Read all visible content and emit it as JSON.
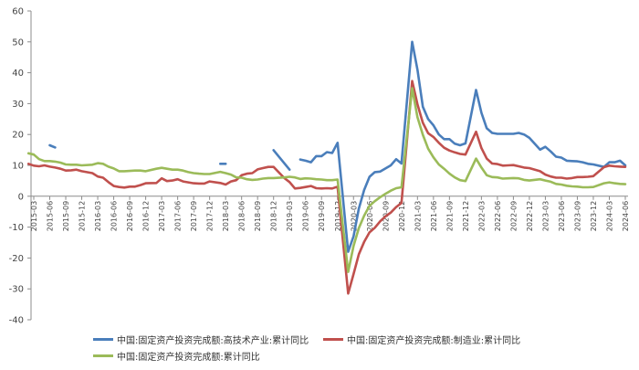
{
  "chart_data": {
    "type": "line",
    "title": "",
    "xlabel": "",
    "ylabel": "",
    "ylim": [
      -40,
      60
    ],
    "yticks": [
      -40,
      -30,
      -20,
      -10,
      0,
      10,
      20,
      30,
      40,
      50,
      60
    ],
    "grid": false,
    "legend_position": "bottom",
    "x_tick_labels": [
      "2015-03",
      "2015-06",
      "2015-09",
      "2015-12",
      "2016-03",
      "2016-06",
      "2016-09",
      "2016-12",
      "2017-03",
      "2017-06",
      "2017-09",
      "2017-12",
      "2018-03",
      "2018-06",
      "2018-09",
      "2018-12",
      "2019-03",
      "2019-06",
      "2019-09",
      "2019-12",
      "2020-03",
      "2020-06",
      "2020-09",
      "2020-12",
      "2021-03",
      "2021-06",
      "2021-09",
      "2021-12",
      "2022-03",
      "2022-06",
      "2022-09",
      "2022-12",
      "2023-03",
      "2023-06",
      "2023-09",
      "2023-12",
      "2024-03",
      "2024-06"
    ],
    "series": [
      {
        "name": "中国:固定资产投资完成额:高技术产业:累计同比",
        "color": "#4a7ebb",
        "points": [
          [
            "2015-06",
            16.5
          ],
          [
            "2015-07",
            15.8
          ],
          [
            null,
            null
          ],
          [
            "2018-02",
            10.5
          ],
          [
            "2018-03",
            10.5
          ],
          [
            null,
            null
          ],
          [
            "2018-12",
            14.9
          ],
          [
            "2019-03",
            8.6
          ],
          [
            null,
            null
          ],
          [
            "2019-05",
            11.9
          ],
          [
            "2019-06",
            11.5
          ],
          [
            "2019-07",
            11.0
          ],
          [
            "2019-08",
            13.0
          ],
          [
            "2019-09",
            13.0
          ],
          [
            "2019-10",
            14.3
          ],
          [
            "2019-11",
            14.0
          ],
          [
            "2019-12",
            17.3
          ],
          [
            "2020-02",
            -18.0
          ],
          [
            "2020-03",
            -13.0
          ],
          [
            "2020-04",
            -4.0
          ],
          [
            "2020-05",
            2.0
          ],
          [
            "2020-06",
            6.3
          ],
          [
            "2020-07",
            7.8
          ],
          [
            "2020-08",
            8.0
          ],
          [
            "2020-09",
            9.0
          ],
          [
            "2020-10",
            10.0
          ],
          [
            "2020-11",
            12.0
          ],
          [
            "2020-12",
            10.6
          ],
          [
            "2021-02",
            50.0
          ],
          [
            "2021-03",
            41.0
          ],
          [
            "2021-04",
            29.0
          ],
          [
            "2021-05",
            25.0
          ],
          [
            "2021-06",
            23.0
          ],
          [
            "2021-07",
            20.0
          ],
          [
            "2021-08",
            18.5
          ],
          [
            "2021-09",
            18.5
          ],
          [
            "2021-10",
            17.0
          ],
          [
            "2021-11",
            16.5
          ],
          [
            "2021-12",
            17.1
          ],
          [
            "2022-02",
            34.4
          ],
          [
            "2022-03",
            27.0
          ],
          [
            "2022-04",
            22.0
          ],
          [
            "2022-05",
            20.5
          ],
          [
            "2022-06",
            20.2
          ],
          [
            "2022-07",
            20.2
          ],
          [
            "2022-08",
            20.2
          ],
          [
            "2022-09",
            20.2
          ],
          [
            "2022-10",
            20.5
          ],
          [
            "2022-11",
            20.0
          ],
          [
            "2022-12",
            18.9
          ],
          [
            "2023-02",
            15.1
          ],
          [
            "2023-03",
            16.0
          ],
          [
            "2023-04",
            14.5
          ],
          [
            "2023-05",
            12.8
          ],
          [
            "2023-06",
            12.5
          ],
          [
            "2023-07",
            11.5
          ],
          [
            "2023-08",
            11.4
          ],
          [
            "2023-09",
            11.3
          ],
          [
            "2023-10",
            11.0
          ],
          [
            "2023-11",
            10.5
          ],
          [
            "2023-12",
            10.3
          ],
          [
            "2024-02",
            9.5
          ],
          [
            "2024-03",
            11.0
          ],
          [
            "2024-04",
            11.0
          ],
          [
            "2024-05",
            11.5
          ],
          [
            "2024-06",
            10.0
          ]
        ]
      },
      {
        "name": "中国:固定资产投资完成额:制造业:累计同比",
        "color": "#c0504d",
        "points": [
          [
            "2015-02",
            10.5
          ],
          [
            "2015-03",
            9.9
          ],
          [
            "2015-04",
            9.7
          ],
          [
            "2015-05",
            10.0
          ],
          [
            "2015-06",
            9.6
          ],
          [
            "2015-07",
            9.3
          ],
          [
            "2015-08",
            8.9
          ],
          [
            "2015-09",
            8.3
          ],
          [
            "2015-10",
            8.4
          ],
          [
            "2015-11",
            8.6
          ],
          [
            "2015-12",
            8.1
          ],
          [
            "2016-02",
            7.5
          ],
          [
            "2016-03",
            6.4
          ],
          [
            "2016-04",
            6.0
          ],
          [
            "2016-05",
            4.6
          ],
          [
            "2016-06",
            3.3
          ],
          [
            "2016-07",
            3.0
          ],
          [
            "2016-08",
            2.8
          ],
          [
            "2016-09",
            3.1
          ],
          [
            "2016-10",
            3.1
          ],
          [
            "2016-11",
            3.6
          ],
          [
            "2016-12",
            4.2
          ],
          [
            "2017-02",
            4.3
          ],
          [
            "2017-03",
            5.8
          ],
          [
            "2017-04",
            4.9
          ],
          [
            "2017-05",
            5.1
          ],
          [
            "2017-06",
            5.5
          ],
          [
            "2017-07",
            4.8
          ],
          [
            "2017-08",
            4.5
          ],
          [
            "2017-09",
            4.2
          ],
          [
            "2017-10",
            4.1
          ],
          [
            "2017-11",
            4.1
          ],
          [
            "2017-12",
            4.8
          ],
          [
            "2018-02",
            4.3
          ],
          [
            "2018-03",
            3.8
          ],
          [
            "2018-04",
            4.8
          ],
          [
            "2018-05",
            5.2
          ],
          [
            "2018-06",
            6.8
          ],
          [
            "2018-07",
            7.3
          ],
          [
            "2018-08",
            7.5
          ],
          [
            "2018-09",
            8.7
          ],
          [
            "2018-10",
            9.1
          ],
          [
            "2018-11",
            9.5
          ],
          [
            "2018-12",
            9.5
          ],
          [
            "2019-02",
            5.9
          ],
          [
            "2019-03",
            4.6
          ],
          [
            "2019-04",
            2.5
          ],
          [
            "2019-05",
            2.7
          ],
          [
            "2019-06",
            3.0
          ],
          [
            "2019-07",
            3.3
          ],
          [
            "2019-08",
            2.6
          ],
          [
            "2019-09",
            2.5
          ],
          [
            "2019-10",
            2.6
          ],
          [
            "2019-11",
            2.5
          ],
          [
            "2019-12",
            3.1
          ],
          [
            "2020-02",
            -31.5
          ],
          [
            "2020-03",
            -25.2
          ],
          [
            "2020-04",
            -18.8
          ],
          [
            "2020-05",
            -14.8
          ],
          [
            "2020-06",
            -11.7
          ],
          [
            "2020-07",
            -10.2
          ],
          [
            "2020-08",
            -8.1
          ],
          [
            "2020-09",
            -6.5
          ],
          [
            "2020-10",
            -5.3
          ],
          [
            "2020-11",
            -3.5
          ],
          [
            "2020-12",
            -2.2
          ],
          [
            "2021-02",
            37.3
          ],
          [
            "2021-03",
            29.8
          ],
          [
            "2021-04",
            23.8
          ],
          [
            "2021-05",
            20.4
          ],
          [
            "2021-06",
            19.2
          ],
          [
            "2021-07",
            17.3
          ],
          [
            "2021-08",
            15.7
          ],
          [
            "2021-09",
            14.8
          ],
          [
            "2021-10",
            14.2
          ],
          [
            "2021-11",
            13.7
          ],
          [
            "2021-12",
            13.5
          ],
          [
            "2022-02",
            20.9
          ],
          [
            "2022-03",
            15.6
          ],
          [
            "2022-04",
            12.2
          ],
          [
            "2022-05",
            10.6
          ],
          [
            "2022-06",
            10.4
          ],
          [
            "2022-07",
            9.9
          ],
          [
            "2022-08",
            10.0
          ],
          [
            "2022-09",
            10.1
          ],
          [
            "2022-10",
            9.7
          ],
          [
            "2022-11",
            9.3
          ],
          [
            "2022-12",
            9.1
          ],
          [
            "2023-02",
            8.1
          ],
          [
            "2023-03",
            7.0
          ],
          [
            "2023-04",
            6.4
          ],
          [
            "2023-05",
            6.0
          ],
          [
            "2023-06",
            6.0
          ],
          [
            "2023-07",
            5.7
          ],
          [
            "2023-08",
            5.9
          ],
          [
            "2023-09",
            6.2
          ],
          [
            "2023-10",
            6.2
          ],
          [
            "2023-11",
            6.3
          ],
          [
            "2023-12",
            6.5
          ],
          [
            "2024-02",
            9.4
          ],
          [
            "2024-03",
            9.9
          ],
          [
            "2024-04",
            9.7
          ],
          [
            "2024-05",
            9.6
          ],
          [
            "2024-06",
            9.5
          ]
        ]
      },
      {
        "name": "中国:固定资产投资完成额:累计同比",
        "color": "#9bbb59",
        "points": [
          [
            "2015-02",
            13.9
          ],
          [
            "2015-03",
            13.5
          ],
          [
            "2015-04",
            12.0
          ],
          [
            "2015-05",
            11.4
          ],
          [
            "2015-06",
            11.4
          ],
          [
            "2015-07",
            11.2
          ],
          [
            "2015-08",
            10.9
          ],
          [
            "2015-09",
            10.3
          ],
          [
            "2015-10",
            10.2
          ],
          [
            "2015-11",
            10.2
          ],
          [
            "2015-12",
            10.0
          ],
          [
            "2016-02",
            10.2
          ],
          [
            "2016-03",
            10.7
          ],
          [
            "2016-04",
            10.5
          ],
          [
            "2016-05",
            9.6
          ],
          [
            "2016-06",
            9.0
          ],
          [
            "2016-07",
            8.1
          ],
          [
            "2016-08",
            8.1
          ],
          [
            "2016-09",
            8.2
          ],
          [
            "2016-10",
            8.3
          ],
          [
            "2016-11",
            8.3
          ],
          [
            "2016-12",
            8.1
          ],
          [
            "2017-02",
            8.9
          ],
          [
            "2017-03",
            9.2
          ],
          [
            "2017-04",
            8.9
          ],
          [
            "2017-05",
            8.6
          ],
          [
            "2017-06",
            8.6
          ],
          [
            "2017-07",
            8.3
          ],
          [
            "2017-08",
            7.8
          ],
          [
            "2017-09",
            7.5
          ],
          [
            "2017-10",
            7.3
          ],
          [
            "2017-11",
            7.2
          ],
          [
            "2017-12",
            7.2
          ],
          [
            "2018-02",
            7.9
          ],
          [
            "2018-03",
            7.5
          ],
          [
            "2018-04",
            7.0
          ],
          [
            "2018-05",
            6.1
          ],
          [
            "2018-06",
            6.0
          ],
          [
            "2018-07",
            5.5
          ],
          [
            "2018-08",
            5.3
          ],
          [
            "2018-09",
            5.4
          ],
          [
            "2018-10",
            5.7
          ],
          [
            "2018-11",
            5.9
          ],
          [
            "2018-12",
            5.9
          ],
          [
            "2019-02",
            6.1
          ],
          [
            "2019-03",
            6.3
          ],
          [
            "2019-04",
            6.1
          ],
          [
            "2019-05",
            5.6
          ],
          [
            "2019-06",
            5.8
          ],
          [
            "2019-07",
            5.7
          ],
          [
            "2019-08",
            5.5
          ],
          [
            "2019-09",
            5.4
          ],
          [
            "2019-10",
            5.2
          ],
          [
            "2019-11",
            5.2
          ],
          [
            "2019-12",
            5.4
          ],
          [
            "2020-02",
            -24.5
          ],
          [
            "2020-03",
            -16.1
          ],
          [
            "2020-04",
            -10.3
          ],
          [
            "2020-05",
            -6.3
          ],
          [
            "2020-06",
            -3.1
          ],
          [
            "2020-07",
            -1.6
          ],
          [
            "2020-08",
            -0.3
          ],
          [
            "2020-09",
            0.8
          ],
          [
            "2020-10",
            1.8
          ],
          [
            "2020-11",
            2.6
          ],
          [
            "2020-12",
            2.9
          ],
          [
            "2021-02",
            35.0
          ],
          [
            "2021-03",
            25.6
          ],
          [
            "2021-04",
            19.9
          ],
          [
            "2021-05",
            15.4
          ],
          [
            "2021-06",
            12.6
          ],
          [
            "2021-07",
            10.3
          ],
          [
            "2021-08",
            8.9
          ],
          [
            "2021-09",
            7.3
          ],
          [
            "2021-10",
            6.1
          ],
          [
            "2021-11",
            5.2
          ],
          [
            "2021-12",
            4.9
          ],
          [
            "2022-02",
            12.2
          ],
          [
            "2022-03",
            9.3
          ],
          [
            "2022-04",
            6.8
          ],
          [
            "2022-05",
            6.2
          ],
          [
            "2022-06",
            6.1
          ],
          [
            "2022-07",
            5.7
          ],
          [
            "2022-08",
            5.8
          ],
          [
            "2022-09",
            5.9
          ],
          [
            "2022-10",
            5.8
          ],
          [
            "2022-11",
            5.3
          ],
          [
            "2022-12",
            5.1
          ],
          [
            "2023-02",
            5.5
          ],
          [
            "2023-03",
            5.1
          ],
          [
            "2023-04",
            4.7
          ],
          [
            "2023-05",
            4.0
          ],
          [
            "2023-06",
            3.8
          ],
          [
            "2023-07",
            3.4
          ],
          [
            "2023-08",
            3.2
          ],
          [
            "2023-09",
            3.1
          ],
          [
            "2023-10",
            2.9
          ],
          [
            "2023-11",
            2.9
          ],
          [
            "2023-12",
            3.0
          ],
          [
            "2024-02",
            4.2
          ],
          [
            "2024-03",
            4.5
          ],
          [
            "2024-04",
            4.2
          ],
          [
            "2024-05",
            4.0
          ],
          [
            "2024-06",
            3.9
          ]
        ]
      }
    ]
  }
}
